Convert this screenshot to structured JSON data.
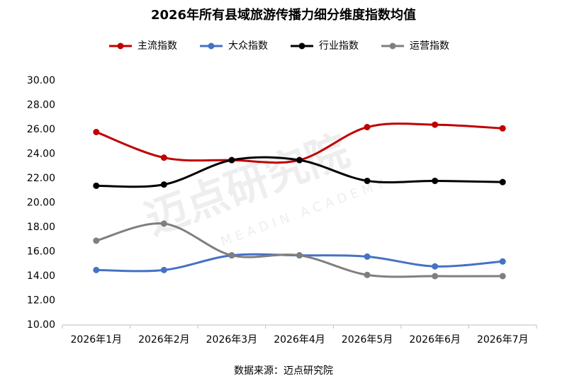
{
  "chart_data": {
    "type": "line",
    "title": "2026年所有县域旅游传播力细分维度指数均值",
    "categories": [
      "2026年1月",
      "2026年2月",
      "2026年3月",
      "2026年4月",
      "2026年5月",
      "2026年6月",
      "2026年7月"
    ],
    "series": [
      {
        "name": "主流指数",
        "color": "#c00000",
        "values": [
          25.8,
          23.7,
          23.5,
          23.5,
          26.2,
          26.4,
          26.1
        ]
      },
      {
        "name": "大众指数",
        "color": "#4472c4",
        "values": [
          14.5,
          14.5,
          15.7,
          15.7,
          15.6,
          14.8,
          15.2
        ]
      },
      {
        "name": "行业指数",
        "color": "#000000",
        "values": [
          21.4,
          21.5,
          23.5,
          23.5,
          21.8,
          21.8,
          21.7
        ]
      },
      {
        "name": "运营指数",
        "color": "#7f7f7f",
        "values": [
          16.9,
          18.3,
          15.7,
          15.7,
          14.1,
          14.0,
          14.0
        ]
      }
    ],
    "ylim": [
      10,
      30
    ],
    "yticks": [
      {
        "value": 10,
        "label": "10.00"
      },
      {
        "value": 12,
        "label": "12.00"
      },
      {
        "value": 14,
        "label": "14.00"
      },
      {
        "value": 16,
        "label": "16.00"
      },
      {
        "value": 18,
        "label": "18.00"
      },
      {
        "value": 20,
        "label": "20.00"
      },
      {
        "value": 22,
        "label": "22.00"
      },
      {
        "value": 24,
        "label": "24.00"
      },
      {
        "value": 26,
        "label": "26.00"
      },
      {
        "value": 28,
        "label": "28.00"
      },
      {
        "value": 30,
        "label": "30.00"
      }
    ],
    "smooth": true,
    "legend": "top",
    "source": "数据来源：迈点研究院",
    "watermark": [
      "迈点研究院",
      "MEADIN ACADEMY"
    ]
  }
}
